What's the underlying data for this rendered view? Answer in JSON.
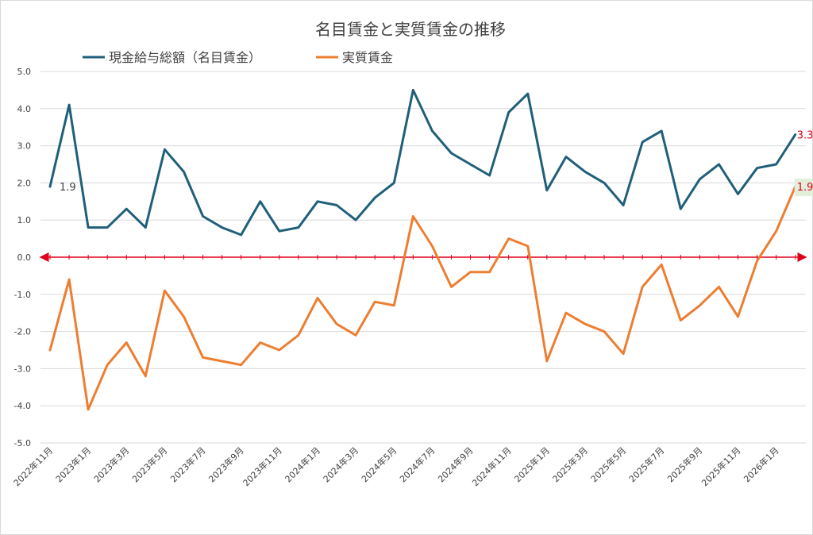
{
  "chart_data": {
    "type": "line",
    "title": "名目賃金と実質賃金の推移",
    "xlabel": "",
    "ylabel": "",
    "ylim": [
      -5.0,
      5.0
    ],
    "y_ticks": [
      "5.0",
      "4.0",
      "3.0",
      "2.0",
      "1.0",
      "0.0",
      "-1.0",
      "-2.0",
      "-3.0",
      "-4.0",
      "-5.0"
    ],
    "y_tick_values": [
      5,
      4,
      3,
      2,
      1,
      0,
      -1,
      -2,
      -3,
      -4,
      -5
    ],
    "x": [
      "2022年11月",
      "2022年12月",
      "2023年1月",
      "2023年2月",
      "2023年3月",
      "2023年4月",
      "2023年5月",
      "2023年6月",
      "2023年7月",
      "2023年8月",
      "2023年9月",
      "2023年10月",
      "2023年11月",
      "2023年12月",
      "2024年1月",
      "2024年2月",
      "2024年3月",
      "2024年4月",
      "2024年5月",
      "2024年6月",
      "2024年7月",
      "2024年8月",
      "2024年9月",
      "2024年10月",
      "2024年11月",
      "2024年12月",
      "2025年1月",
      "2025年2月",
      "2025年3月",
      "2025年4月",
      "2025年5月",
      "2025年6月",
      "2025年7月",
      "2025年8月",
      "2025年9月",
      "2025年10月",
      "2025年11月",
      "2025年12月",
      "2026年1月",
      "2026年2月"
    ],
    "x_tick_labels": [
      {
        "index": 0,
        "label": "2022年11月"
      },
      {
        "index": 2,
        "label": "2023年1月"
      },
      {
        "index": 4,
        "label": "2023年3月"
      },
      {
        "index": 6,
        "label": "2023年5月"
      },
      {
        "index": 8,
        "label": "2023年7月"
      },
      {
        "index": 10,
        "label": "2023年9月"
      },
      {
        "index": 12,
        "label": "2023年11月"
      },
      {
        "index": 14,
        "label": "2024年1月"
      },
      {
        "index": 16,
        "label": "2024年3月"
      },
      {
        "index": 18,
        "label": "2024年5月"
      },
      {
        "index": 20,
        "label": "2024年7月"
      },
      {
        "index": 22,
        "label": "2024年9月"
      },
      {
        "index": 24,
        "label": "2024年11月"
      },
      {
        "index": 26,
        "label": "2025年1月"
      },
      {
        "index": 28,
        "label": "2025年3月"
      },
      {
        "index": 30,
        "label": "2025年5月"
      },
      {
        "index": 32,
        "label": "2025年7月"
      },
      {
        "index": 34,
        "label": "2025年9月"
      },
      {
        "index": 36,
        "label": "2025年11月"
      },
      {
        "index": 38,
        "label": "2026年1月"
      }
    ],
    "series": [
      {
        "name": "現金給与総額（名目賃金）",
        "color": "#1f5f7a",
        "values": [
          1.9,
          4.1,
          0.8,
          0.8,
          1.3,
          0.8,
          2.9,
          2.3,
          1.1,
          0.8,
          0.6,
          1.5,
          0.7,
          0.8,
          1.5,
          1.4,
          1.0,
          1.6,
          2.0,
          4.5,
          3.4,
          2.8,
          2.5,
          2.2,
          3.9,
          4.4,
          1.8,
          2.7,
          2.3,
          2.0,
          1.4,
          3.1,
          3.4,
          1.3,
          2.1,
          2.5,
          1.7,
          2.4,
          2.5,
          3.3
        ]
      },
      {
        "name": "実質賃金",
        "color": "#ed7d31",
        "values": [
          -2.5,
          -0.6,
          -4.1,
          -2.9,
          -2.3,
          -3.2,
          -0.9,
          -1.6,
          -2.7,
          -2.8,
          -2.9,
          -2.3,
          -2.5,
          -2.1,
          -1.1,
          -1.8,
          -2.1,
          -1.2,
          -1.3,
          1.1,
          0.3,
          -0.8,
          -0.4,
          -0.4,
          0.5,
          0.3,
          -2.8,
          -1.5,
          -1.8,
          -2.0,
          -2.6,
          -0.8,
          -0.2,
          -1.7,
          -1.3,
          -0.8,
          -1.6,
          -0.1,
          0.7,
          1.9
        ]
      }
    ],
    "annotations": [
      {
        "text": "1.9",
        "series": 0,
        "index": 0,
        "color": "#404040"
      },
      {
        "text": "3.3",
        "series": 0,
        "index": 39,
        "color": "#e0001a"
      },
      {
        "text": "1.9",
        "series": 1,
        "index": 39,
        "color": "#e0001a",
        "highlight": "#e2efda"
      }
    ],
    "zero_line_color": "#e0001a",
    "grid": true,
    "legend_position": "top-left"
  }
}
